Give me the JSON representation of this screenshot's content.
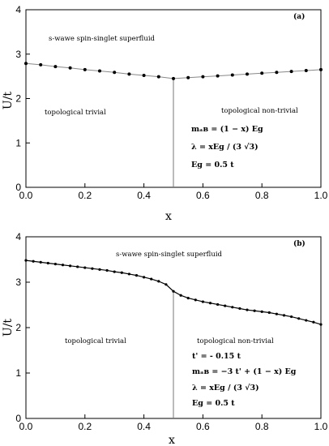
{
  "chart_data": [
    {
      "type": "line",
      "panel_label": "(a)",
      "xlabel": "x",
      "ylabel": "U/t",
      "xlim": [
        0,
        1
      ],
      "ylim": [
        0,
        4
      ],
      "xticks": [
        "0.0",
        "0.2",
        "0.4",
        "0.6",
        "0.8",
        "1.0"
      ],
      "yticks": [
        "0",
        "1",
        "2",
        "3",
        "4"
      ],
      "grid": false,
      "phase_boundary_x": 0.5,
      "regions": {
        "top": "s-wawe spin-singlet superfluid",
        "left": "topological trivial",
        "right": "topological non-trivial"
      },
      "annotations": [
        "mₐʙ = (1 − x) Eɡ",
        "λ = xEɡ / (3 √3)",
        "Eɡ = 0.5 t"
      ],
      "x": [
        0.0,
        0.05,
        0.1,
        0.15,
        0.2,
        0.25,
        0.3,
        0.35,
        0.4,
        0.45,
        0.5,
        0.55,
        0.6,
        0.65,
        0.7,
        0.75,
        0.8,
        0.85,
        0.9,
        0.95,
        1.0
      ],
      "y": [
        2.79,
        2.76,
        2.72,
        2.69,
        2.65,
        2.62,
        2.59,
        2.55,
        2.52,
        2.49,
        2.45,
        2.47,
        2.49,
        2.51,
        2.53,
        2.55,
        2.57,
        2.59,
        2.61,
        2.63,
        2.65
      ]
    },
    {
      "type": "line",
      "panel_label": "(b)",
      "xlabel": "x",
      "ylabel": "U/t",
      "xlim": [
        0,
        1
      ],
      "ylim": [
        0,
        4
      ],
      "xticks": [
        "0.0",
        "0.2",
        "0.4",
        "0.6",
        "0.8",
        "1.0"
      ],
      "yticks": [
        "0",
        "1",
        "2",
        "3",
        "4"
      ],
      "grid": false,
      "phase_boundary_x": 0.5,
      "regions": {
        "top": "s-wawe spin-singlet superfluid",
        "left": "topological trivial",
        "right": "topological non-trivial"
      },
      "annotations": [
        "t' = - 0.15 t",
        "mₐʙ = −3 t' + (1 − x) Eɡ",
        "λ = xEɡ / (3 √3)",
        "Eɡ = 0.5 t"
      ],
      "x": [
        0.0,
        0.025,
        0.05,
        0.075,
        0.1,
        0.125,
        0.15,
        0.175,
        0.2,
        0.225,
        0.25,
        0.275,
        0.3,
        0.325,
        0.35,
        0.375,
        0.4,
        0.425,
        0.45,
        0.475,
        0.5,
        0.525,
        0.55,
        0.575,
        0.6,
        0.625,
        0.65,
        0.675,
        0.7,
        0.725,
        0.75,
        0.775,
        0.8,
        0.825,
        0.85,
        0.875,
        0.9,
        0.925,
        0.95,
        0.975,
        1.0
      ],
      "y": [
        3.48,
        3.46,
        3.44,
        3.42,
        3.4,
        3.38,
        3.36,
        3.34,
        3.32,
        3.3,
        3.28,
        3.26,
        3.23,
        3.21,
        3.18,
        3.15,
        3.11,
        3.07,
        3.02,
        2.95,
        2.8,
        2.71,
        2.65,
        2.61,
        2.57,
        2.54,
        2.51,
        2.48,
        2.45,
        2.42,
        2.39,
        2.37,
        2.35,
        2.33,
        2.3,
        2.27,
        2.24,
        2.2,
        2.16,
        2.12,
        2.07
      ]
    }
  ]
}
